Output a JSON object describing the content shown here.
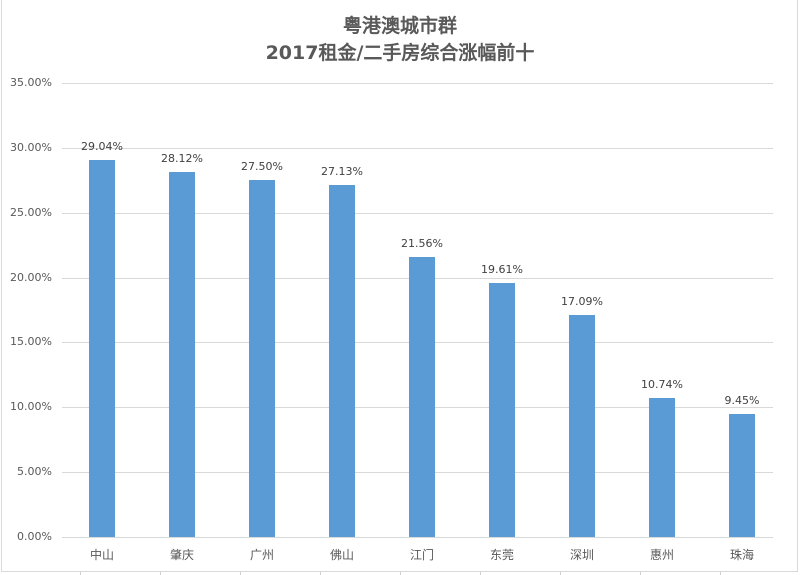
{
  "chart_data": {
    "type": "bar",
    "title": "粤港澳城市群",
    "subtitle": "2017租金/二手房综合涨幅前十",
    "categories": [
      "中山",
      "肇庆",
      "广州",
      "佛山",
      "江门",
      "东莞",
      "深圳",
      "惠州",
      "珠海"
    ],
    "values": [
      29.04,
      28.12,
      27.5,
      27.13,
      21.56,
      19.61,
      17.09,
      10.74,
      9.45
    ],
    "data_labels": [
      "29.04%",
      "28.12%",
      "27.50%",
      "27.13%",
      "21.56%",
      "19.61%",
      "17.09%",
      "10.74%",
      "9.45%"
    ],
    "xlabel": "",
    "ylabel": "",
    "ylim": [
      0,
      35
    ],
    "yticks": [
      "0.00%",
      "5.00%",
      "10.00%",
      "15.00%",
      "20.00%",
      "25.00%",
      "30.00%",
      "35.00%"
    ],
    "grid": true,
    "legend": "none",
    "bar_color": "#5b9bd5"
  }
}
